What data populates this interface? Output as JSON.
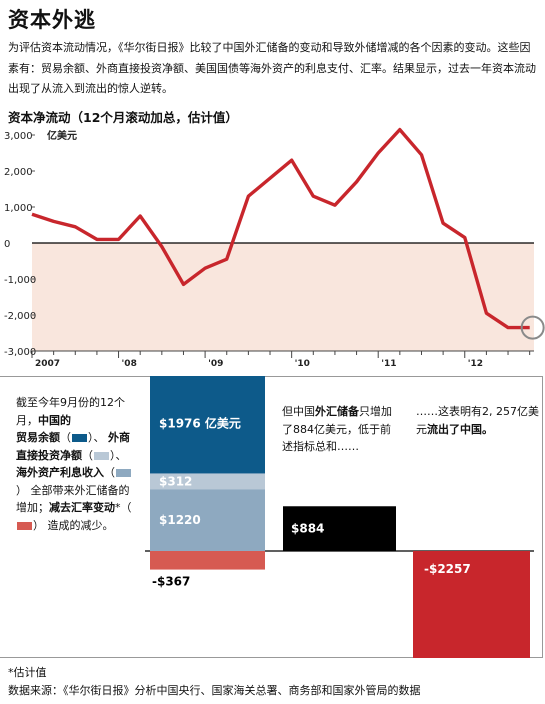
{
  "header": {
    "title": "资本外逃",
    "intro": "为评估资本流动情况，《华尔街日报》比较了中国外汇储备的变动和导致外储增减的各个因素的变动。这些因素有：贸易余额、外商直接投资净额、美国国债等海外资产的利息支付、汇率。结果显示，过去一年资本流动出现了从流入到流出的惊人逆转。",
    "subtitle": "资本净流动（12个月滚动加总，估计值）"
  },
  "colors": {
    "line": "#c8262c",
    "negative_band": "#f9e6dd",
    "trade": "#0d5a8a",
    "fdi": "#b9c8d6",
    "interest": "#8ea9c0",
    "fx": "#d65a52",
    "reserves": "#000000",
    "outflow": "#c8262c"
  },
  "chart_data": [
    {
      "type": "line",
      "title": "资本净流动（12个月滚动加总，估计值）",
      "y_unit_label": "亿美元",
      "ylim": [
        -3000,
        3000
      ],
      "yticks": [
        -3000,
        -2000,
        -1000,
        0,
        1000,
        2000,
        3000
      ],
      "ytick_labels": [
        "-3,000",
        "-2,000",
        "-1,000",
        "0",
        "1,000",
        "2,000",
        "3,000"
      ],
      "xlim": [
        2007.0,
        2012.8
      ],
      "xticks": [
        2007,
        2008,
        2009,
        2010,
        2011,
        2012
      ],
      "xtick_labels": [
        "2007",
        "'08",
        "'09",
        "'10",
        "'11",
        "'12"
      ],
      "grid": false,
      "series": [
        {
          "x": [
            2007.0,
            2007.25,
            2007.5,
            2007.75,
            2008.0,
            2008.25,
            2008.5,
            2008.75,
            2009.0,
            2009.25,
            2009.5,
            2010.0,
            2010.25,
            2010.5,
            2010.75,
            2011.0,
            2011.25,
            2011.5,
            2011.75,
            2012.0,
            2012.25,
            2012.5,
            2012.75
          ],
          "y": [
            800,
            600,
            450,
            100,
            100,
            750,
            -100,
            -1150,
            -700,
            -450,
            1300,
            2300,
            1300,
            1050,
            1700,
            2500,
            3150,
            2450,
            550,
            150,
            -1950,
            -2350,
            -2350
          ]
        }
      ]
    },
    {
      "type": "bar",
      "title": "",
      "categories": [
        "贸易余额",
        "外商直接投资净额",
        "海外资产利息收入",
        "汇率变动",
        "外汇储备增加",
        "资本流出"
      ],
      "values": [
        1976,
        312,
        1220,
        -367,
        884,
        -2257
      ],
      "labels": [
        "$1976 亿美元",
        "$312",
        "$1220",
        "-$367",
        "$884",
        "-$2257"
      ]
    }
  ],
  "legend_text": {
    "p1": "截至今年9月份的12个月，",
    "china": "中国的",
    "trade": "贸易余额",
    "fdi": "外商直接投资净额",
    "interest": "海外资产利息收入",
    "p2": "全部带来外汇储备的增加；",
    "minus_fx": "减去汇率变动",
    "p3": "造成的减少。"
  },
  "notes": {
    "note1_a": "但中国",
    "note1_b": "外汇储备",
    "note1_c": "只增加了884亿美元，低于前述指标总和……",
    "note2_a": "……这表明有2, 257亿美元",
    "note2_b": "流出了中国。"
  },
  "footer": {
    "estimate": "*估计值",
    "source": "数据来源：《华尔街日报》分析中国央行、国家海关总署、商务部和国家外管局的数据"
  }
}
